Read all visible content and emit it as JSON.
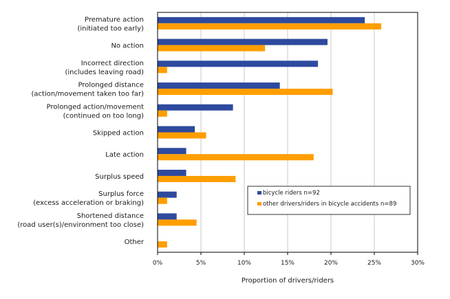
{
  "chart_data": {
    "type": "bar",
    "orientation": "horizontal",
    "categories": [
      [
        "Premature action",
        "(initiated too early)"
      ],
      [
        "No action"
      ],
      [
        "Incorrect direction",
        "(includes leaving road)"
      ],
      [
        "Prolonged distance",
        "(action/movement taken too far)"
      ],
      [
        "Prolonged action/movement",
        "(continued on too long)"
      ],
      [
        "Skipped action"
      ],
      [
        "Late action"
      ],
      [
        "Surplus speed"
      ],
      [
        "Surplus force",
        "(excess acceleration or braking)"
      ],
      [
        "Shortened distance",
        "(road user(s)/environment too close)"
      ],
      [
        "Other"
      ]
    ],
    "series": [
      {
        "name": "bicycle riders  n=92",
        "color": "#2e4a9e",
        "values": [
          23.9,
          19.6,
          18.5,
          14.1,
          8.7,
          4.3,
          3.3,
          3.3,
          2.2,
          2.2,
          0
        ]
      },
      {
        "name": "other drivers/riders in bicycle accidents  n=89",
        "color": "#ff9e00",
        "values": [
          25.8,
          12.4,
          1.1,
          20.2,
          1.1,
          5.6,
          18.0,
          9.0,
          1.1,
          4.5,
          1.1
        ]
      }
    ],
    "xlim": [
      0,
      30
    ],
    "xticks": [
      "0%",
      "5%",
      "10%",
      "15%",
      "20%",
      "25%",
      "30%"
    ],
    "xtick_values": [
      0,
      5,
      10,
      15,
      20,
      25,
      30
    ],
    "xlabel": "Proportion of drivers/riders",
    "grid": "vertical",
    "legend_position": "lower-right"
  }
}
